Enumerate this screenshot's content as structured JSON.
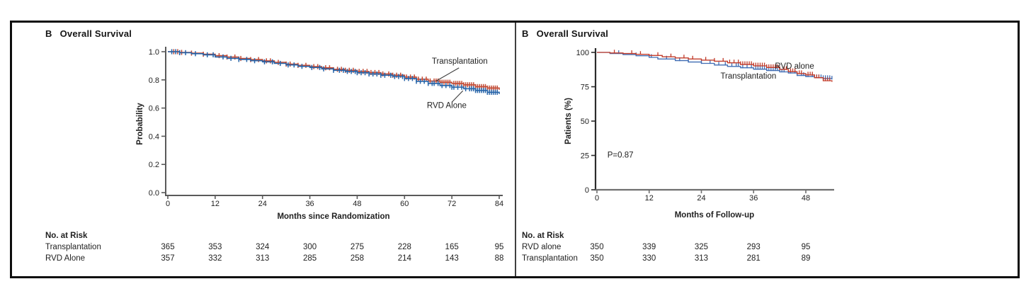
{
  "chart_data": [
    {
      "type": "line",
      "km_style": "step",
      "panel_label": "B",
      "title": "Overall Survival",
      "xlabel": "Months since Randomization",
      "ylabel": "Probability",
      "xlim": [
        0,
        84
      ],
      "ylim": [
        0.0,
        1.0
      ],
      "xticks": [
        0,
        12,
        24,
        36,
        48,
        60,
        72,
        84
      ],
      "yticks": [
        "1.0",
        "0.8",
        "0.6",
        "0.4",
        "0.2",
        "0.0"
      ],
      "series": [
        {
          "name": "Transplantation",
          "color": "#c24a34",
          "points": [
            [
              0,
              1.0
            ],
            [
              3,
              0.995
            ],
            [
              6,
              0.99
            ],
            [
              9,
              0.982
            ],
            [
              12,
              0.972
            ],
            [
              15,
              0.962
            ],
            [
              18,
              0.952
            ],
            [
              21,
              0.944
            ],
            [
              24,
              0.935
            ],
            [
              27,
              0.924
            ],
            [
              30,
              0.912
            ],
            [
              33,
              0.903
            ],
            [
              36,
              0.894
            ],
            [
              39,
              0.886
            ],
            [
              42,
              0.875
            ],
            [
              45,
              0.868
            ],
            [
              48,
              0.86
            ],
            [
              51,
              0.852
            ],
            [
              54,
              0.842
            ],
            [
              57,
              0.833
            ],
            [
              60,
              0.82
            ],
            [
              63,
              0.805
            ],
            [
              66,
              0.792
            ],
            [
              69,
              0.783
            ],
            [
              72,
              0.775
            ],
            [
              75,
              0.765
            ],
            [
              78,
              0.752
            ],
            [
              81,
              0.742
            ],
            [
              84,
              0.73
            ]
          ],
          "censor_x": [
            1.5,
            2.5,
            3.5,
            6,
            9,
            13,
            15,
            17,
            18.5,
            21,
            23,
            25,
            26,
            28,
            30,
            31,
            33,
            35,
            37,
            38,
            40,
            41,
            43,
            44,
            45,
            46,
            47,
            48.5,
            49.5,
            50.5,
            51.5,
            52.5,
            53.5,
            54.5,
            56,
            57,
            58,
            59,
            60.5,
            61.5,
            62.5,
            63.5,
            64.5,
            65.5,
            66.5,
            67.5,
            68,
            68.5,
            69,
            69.5,
            70,
            70.5,
            71,
            71.5,
            72.5,
            73,
            73.5,
            74,
            74.5,
            75,
            75.5,
            76,
            76.5,
            77,
            77.5,
            78,
            78.5,
            79,
            79.5,
            80,
            80.5,
            81,
            81.5,
            82,
            82.5,
            83,
            83.5
          ]
        },
        {
          "name": "RVD Alone",
          "color": "#2563a8",
          "points": [
            [
              0,
              1.0
            ],
            [
              3,
              0.993
            ],
            [
              6,
              0.986
            ],
            [
              9,
              0.978
            ],
            [
              12,
              0.963
            ],
            [
              15,
              0.953
            ],
            [
              18,
              0.945
            ],
            [
              21,
              0.936
            ],
            [
              24,
              0.928
            ],
            [
              27,
              0.917
            ],
            [
              30,
              0.906
            ],
            [
              33,
              0.896
            ],
            [
              36,
              0.888
            ],
            [
              39,
              0.878
            ],
            [
              42,
              0.868
            ],
            [
              45,
              0.86
            ],
            [
              48,
              0.851
            ],
            [
              51,
              0.842
            ],
            [
              54,
              0.833
            ],
            [
              57,
              0.824
            ],
            [
              60,
              0.81
            ],
            [
              63,
              0.79
            ],
            [
              66,
              0.775
            ],
            [
              69,
              0.76
            ],
            [
              72,
              0.748
            ],
            [
              75,
              0.737
            ],
            [
              78,
              0.725
            ],
            [
              81,
              0.712
            ],
            [
              84,
              0.7
            ]
          ],
          "censor_x": [
            1,
            2,
            3,
            4.5,
            7,
            10,
            11.5,
            14,
            16,
            18,
            20,
            22,
            24.5,
            26.5,
            28.5,
            30.5,
            32,
            34,
            36.5,
            38.5,
            39.5,
            42,
            43.5,
            44.5,
            45.5,
            46.5,
            47.5,
            48,
            49,
            50,
            51,
            52,
            53,
            54,
            55,
            56.5,
            57.5,
            58.5,
            59.5,
            60,
            61,
            62,
            63,
            64,
            65,
            66,
            67,
            67.5,
            68.5,
            69.5,
            70.5,
            71.5,
            72,
            72.5,
            73.5,
            74.5,
            75.5,
            76.5,
            77,
            77.5,
            78,
            78.5,
            79,
            79.5,
            80,
            80.5,
            81,
            81.5,
            82,
            82.5,
            83,
            83.5
          ]
        }
      ],
      "annotations": [
        {
          "text": "Transplantation",
          "m": 74.0,
          "v": 0.915,
          "anchor": "middle"
        },
        {
          "text": "RVD Alone",
          "m": 70.7,
          "v": 0.601,
          "anchor": "middle"
        }
      ],
      "leaders": [
        {
          "from": {
            "m": 73.8,
            "v": 0.885
          },
          "to": {
            "m": 68.0,
            "v": 0.792
          }
        },
        {
          "from": {
            "m": 72.0,
            "v": 0.642
          },
          "to": {
            "m": 74.8,
            "v": 0.723
          }
        }
      ],
      "risk_table": {
        "header": "No. at Risk",
        "rows": [
          {
            "label": "Transplantation",
            "values": [
              "365",
              "353",
              "324",
              "300",
              "275",
              "228",
              "165",
              "95"
            ]
          },
          {
            "label": "RVD Alone",
            "values": [
              "357",
              "332",
              "313",
              "285",
              "258",
              "214",
              "143",
              "88"
            ]
          }
        ]
      }
    },
    {
      "type": "line",
      "km_style": "step",
      "panel_label": "B",
      "title": "Overall Survival",
      "xlabel": "Months of Follow-up",
      "ylabel": "Patients (%)",
      "xlim": [
        0,
        54.5
      ],
      "ylim": [
        0,
        100
      ],
      "xticks": [
        0,
        12,
        24,
        36,
        48
      ],
      "yticks": [
        "100",
        "75",
        "50",
        "25",
        "0"
      ],
      "p_value": "P=0.87",
      "series": [
        {
          "name": "Transplantation",
          "color": "#3f6cb3",
          "points": [
            [
              0,
              100
            ],
            [
              3,
              99.2
            ],
            [
              6,
              98.4
            ],
            [
              9,
              97.6
            ],
            [
              12,
              96.4
            ],
            [
              14,
              95.2
            ],
            [
              18,
              94
            ],
            [
              21,
              93
            ],
            [
              24,
              92
            ],
            [
              27,
              90.8
            ],
            [
              30,
              89.8
            ],
            [
              33,
              88.8
            ],
            [
              36,
              87.8
            ],
            [
              39,
              86.8
            ],
            [
              42,
              85.8
            ],
            [
              44,
              85
            ],
            [
              46,
              83.2
            ],
            [
              48,
              82.4
            ],
            [
              50,
              81.6
            ],
            [
              52,
              81
            ],
            [
              54,
              80.6
            ]
          ],
          "censor_x": [
            5,
            9,
            12.5,
            16,
            19,
            21,
            24,
            26,
            28,
            29.5,
            31,
            32,
            32.5,
            33.5,
            34.5,
            35.5,
            36.5,
            37,
            37.5,
            38,
            38.5,
            39,
            39.5,
            40,
            40.5,
            41,
            41.5,
            42,
            42.5,
            43,
            44,
            44.5,
            45.5,
            46,
            47,
            47.5,
            48,
            48.5,
            49.5,
            50,
            50.5,
            51,
            51.5,
            52,
            52.5,
            53,
            53.5,
            54
          ]
        },
        {
          "name": "RVD alone",
          "color": "#c13b2a",
          "points": [
            [
              0,
              100
            ],
            [
              3,
              99.6
            ],
            [
              6,
              99.2
            ],
            [
              9,
              98.6
            ],
            [
              12,
              97.8
            ],
            [
              15,
              96.8
            ],
            [
              18,
              96
            ],
            [
              21,
              95.2
            ],
            [
              24,
              94.4
            ],
            [
              27,
              93.6
            ],
            [
              30,
              92.4
            ],
            [
              33,
              91.2
            ],
            [
              36,
              90.2
            ],
            [
              39,
              89
            ],
            [
              42,
              87.6
            ],
            [
              44,
              86
            ],
            [
              46,
              84.6
            ],
            [
              48,
              83.6
            ],
            [
              50,
              81.6
            ],
            [
              52,
              79.4
            ],
            [
              54,
              78.6
            ]
          ],
          "censor_x": [
            4,
            8,
            10,
            14,
            17,
            20,
            22,
            25,
            27,
            29,
            30.5,
            31.5,
            32.5,
            33,
            33.5,
            34,
            34.5,
            35,
            35.5,
            36,
            36.5,
            37,
            37.5,
            38,
            38.5,
            39,
            39.5,
            40,
            40.5,
            41,
            41.5,
            42,
            43,
            43.5,
            44.5,
            45,
            45.5,
            46.5,
            47,
            48.5,
            49,
            49.5,
            50.5,
            51,
            52,
            52.5,
            53,
            53.5
          ]
        }
      ],
      "annotations": [
        {
          "text": "RVD alone",
          "m": 45.4,
          "v": 88.2,
          "anchor": "middle"
        },
        {
          "text": "Transplantation",
          "m": 34.8,
          "v": 80.9,
          "anchor": "middle"
        },
        {
          "text": "P=0.87",
          "m": 2.4,
          "v": 23.5,
          "anchor": "start"
        }
      ],
      "leaders": [],
      "risk_table": {
        "header": "No. at Risk",
        "rows": [
          {
            "label": "RVD alone",
            "values": [
              "350",
              "339",
              "325",
              "293",
              "95"
            ]
          },
          {
            "label": "Transplantation",
            "values": [
              "350",
              "330",
              "313",
              "281",
              "89"
            ]
          }
        ]
      }
    }
  ]
}
